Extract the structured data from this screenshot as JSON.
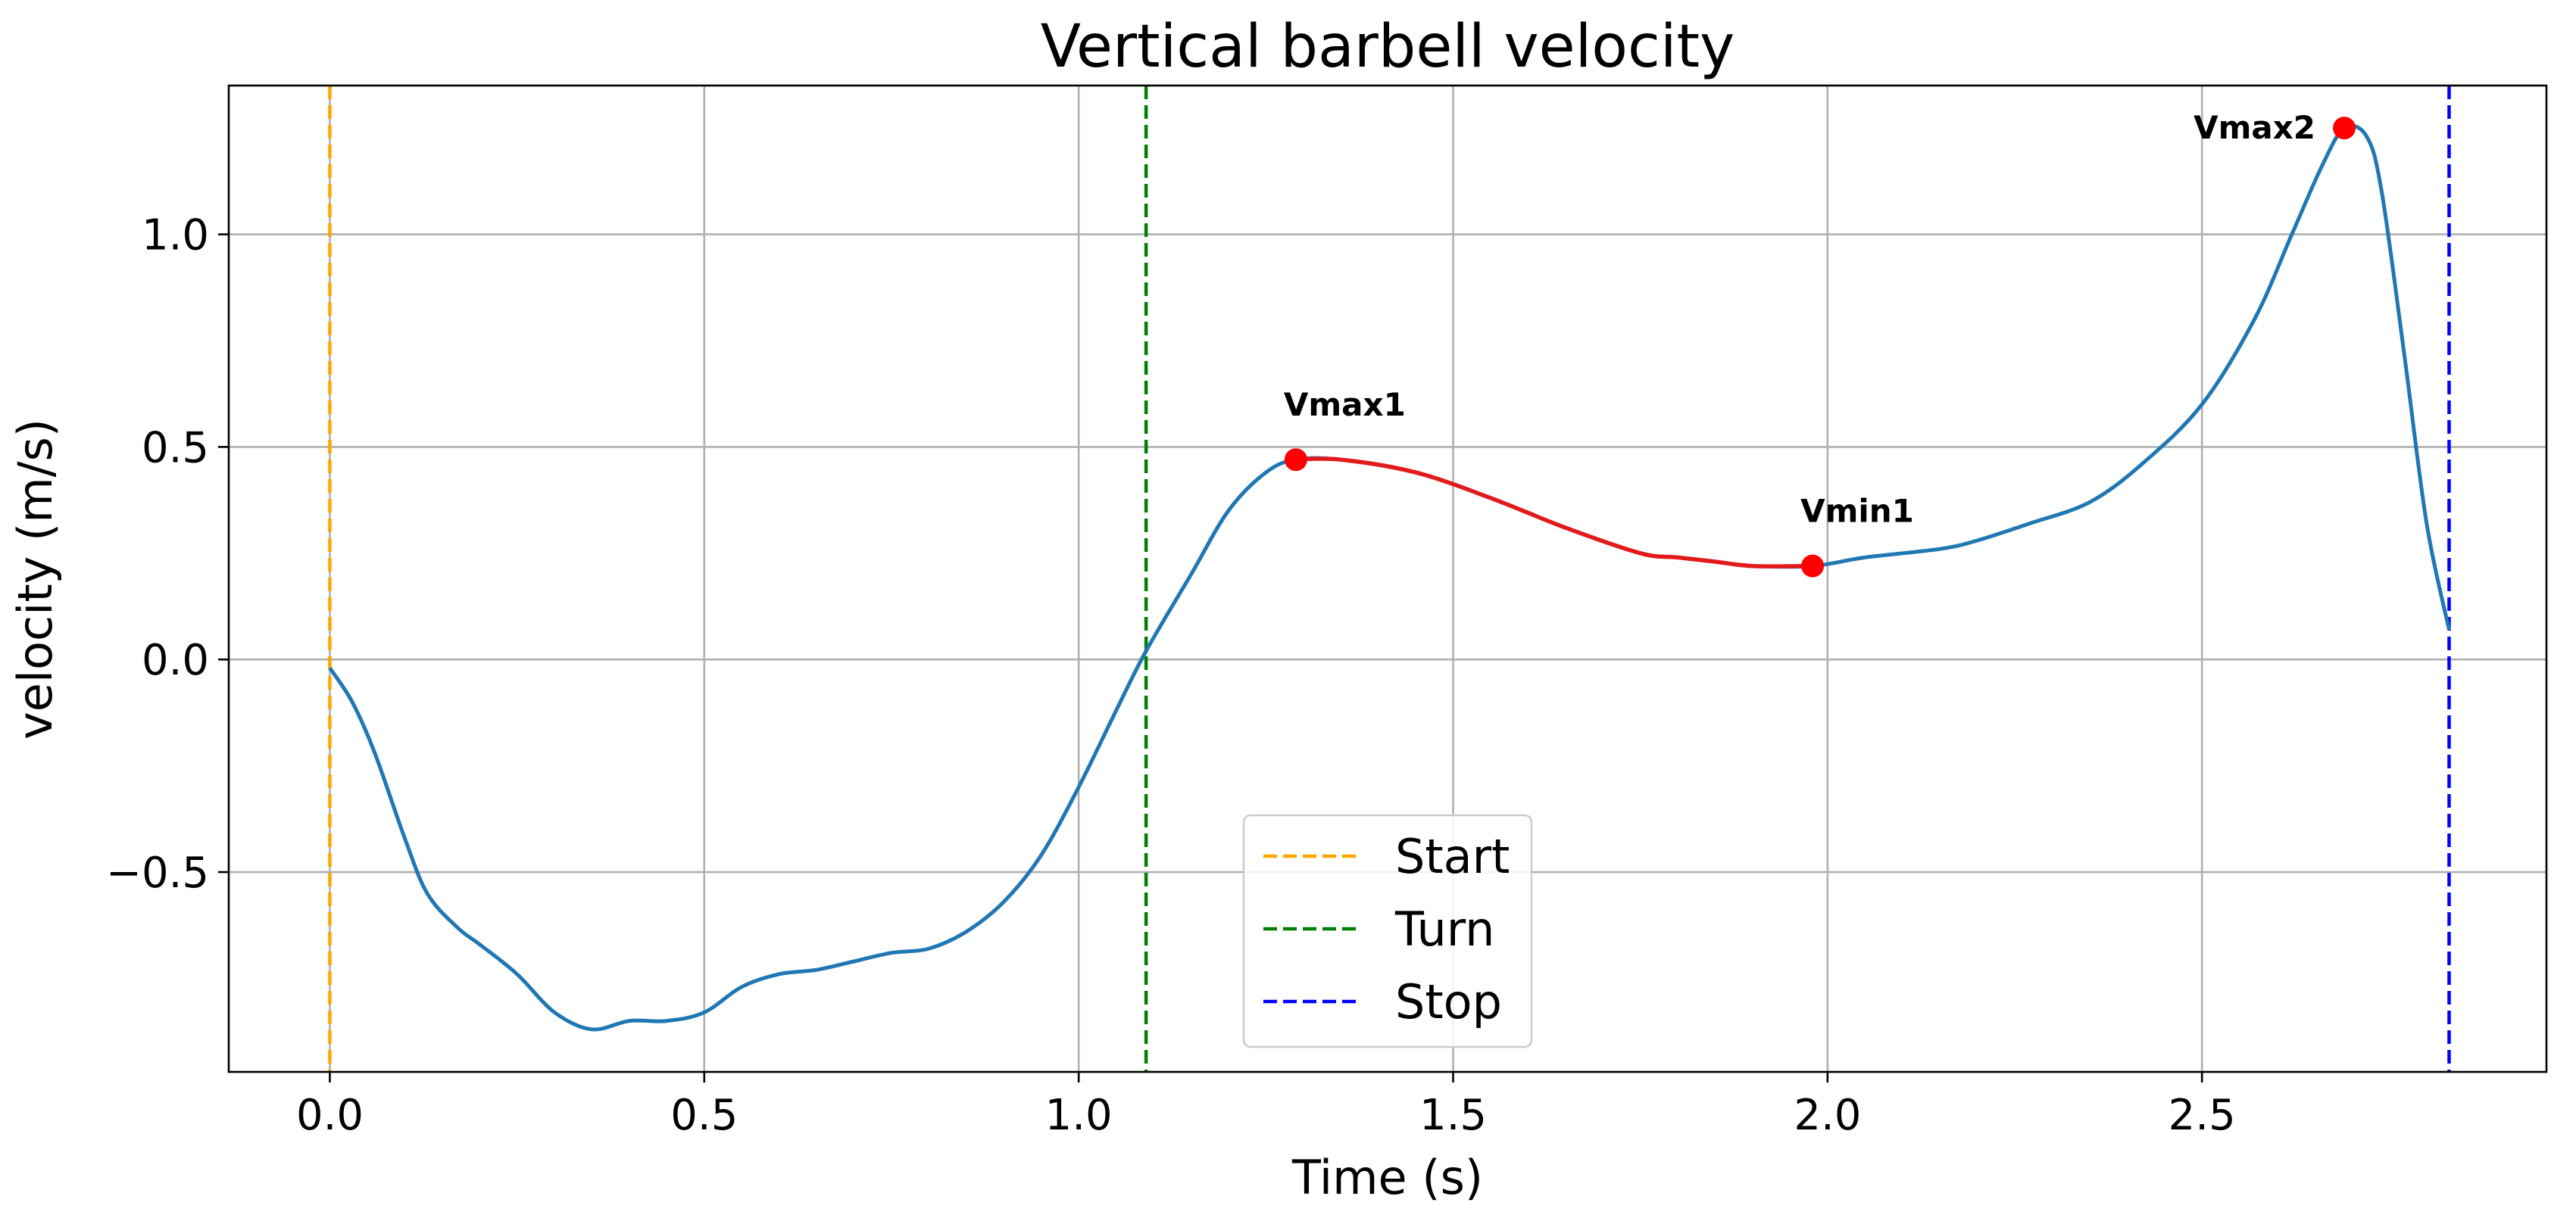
{
  "chart_data": {
    "type": "line",
    "title": "Vertical barbell velocity",
    "xlabel": "Time (s)",
    "ylabel": "velocity (m/s)",
    "xlim": [
      -0.135,
      2.96
    ],
    "ylim": [
      -0.97,
      1.35
    ],
    "grid": true,
    "x_ticks": [
      0.0,
      0.5,
      1.0,
      1.5,
      2.0,
      2.5
    ],
    "x_tick_labels": [
      "0.0",
      "0.5",
      "1.0",
      "1.5",
      "2.0",
      "2.5"
    ],
    "y_ticks": [
      -0.5,
      0.0,
      0.5,
      1.0
    ],
    "y_tick_labels": [
      "−0.5",
      "0.0",
      "0.5",
      "1.0"
    ],
    "series": [
      {
        "name": "velocity",
        "color": "#1f77b4",
        "x": [
          0.0,
          0.03,
          0.06,
          0.1,
          0.13,
          0.17,
          0.2,
          0.25,
          0.3,
          0.35,
          0.4,
          0.45,
          0.5,
          0.55,
          0.6,
          0.65,
          0.7,
          0.75,
          0.8,
          0.85,
          0.9,
          0.95,
          1.0,
          1.05,
          1.09,
          1.15,
          1.2,
          1.25,
          1.29,
          1.35,
          1.45,
          1.55,
          1.65,
          1.75,
          1.8,
          1.85,
          1.9,
          1.98,
          2.05,
          2.15,
          2.2,
          2.27,
          2.35,
          2.42,
          2.5,
          2.57,
          2.62,
          2.66,
          2.69,
          2.72,
          2.74,
          2.77,
          2.8,
          2.83
        ],
        "y": [
          -0.02,
          -0.1,
          -0.22,
          -0.42,
          -0.55,
          -0.63,
          -0.67,
          -0.74,
          -0.83,
          -0.87,
          -0.85,
          -0.85,
          -0.83,
          -0.77,
          -0.74,
          -0.73,
          -0.71,
          -0.69,
          -0.68,
          -0.64,
          -0.57,
          -0.46,
          -0.3,
          -0.12,
          0.02,
          0.2,
          0.35,
          0.44,
          0.47,
          0.47,
          0.44,
          0.38,
          0.31,
          0.25,
          0.24,
          0.23,
          0.22,
          0.22,
          0.24,
          0.26,
          0.28,
          0.32,
          0.37,
          0.46,
          0.6,
          0.8,
          1.0,
          1.16,
          1.25,
          1.23,
          1.1,
          0.72,
          0.32,
          0.07
        ]
      }
    ],
    "highlight_segment": {
      "color": "#e31a1c",
      "x_from": 1.29,
      "x_to": 1.98
    },
    "vlines": [
      {
        "label": "Start",
        "x": 0.0,
        "color": "#ffa500"
      },
      {
        "label": "Turn",
        "x": 1.09,
        "color": "#008000"
      },
      {
        "label": "Stop",
        "x": 2.83,
        "color": "#0000ff"
      }
    ],
    "markers": [
      {
        "label": "Vmax1",
        "x": 1.29,
        "y": 0.47,
        "color": "#ff0000"
      },
      {
        "label": "Vmin1",
        "x": 1.98,
        "y": 0.22,
        "color": "#ff0000"
      },
      {
        "label": "Vmax2",
        "x": 2.69,
        "y": 1.25,
        "color": "#ff0000"
      }
    ],
    "legend_position": "lower-center"
  }
}
